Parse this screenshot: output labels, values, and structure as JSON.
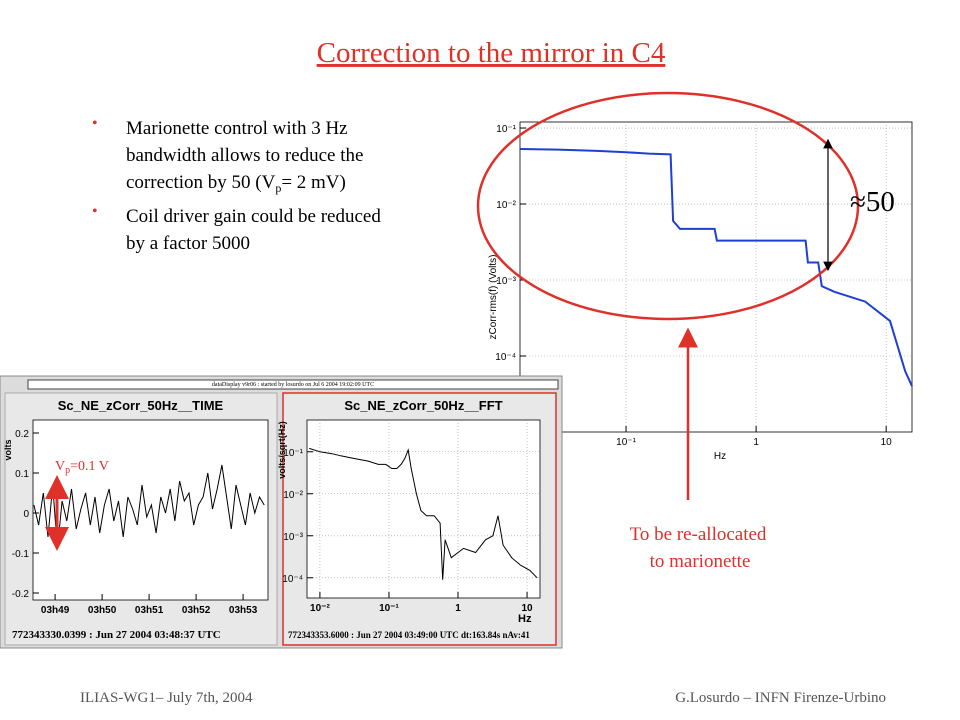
{
  "title": "Correction to the mirror in C4",
  "bullets": [
    [
      "Marionette control with 3 Hz",
      "bandwidth allows to reduce the",
      "correction by 50 (V",
      "p",
      "= 2 mV)"
    ],
    [
      "Coil driver gain could be reduced",
      "by a factor 5000"
    ]
  ],
  "ratio_label": "≈50",
  "reallocate_note": [
    "To be re-allocated",
    "to marionette"
  ],
  "inset_header": "dataDisplay v9r06 : started by losurdo on Jul 6 2004 19:02:09 UTC",
  "footer": {
    "left": "ILIAS-WG1– July 7th, 2004",
    "right": "G.Losurdo – INFN Firenze-Urbino"
  },
  "chart_data": [
    {
      "type": "line",
      "log_x": true,
      "log_y": true,
      "grid": true,
      "y_label": "zCorr-rms(f)  (Volts)",
      "x_label": "Hz",
      "xlim": [
        0.0153,
        15.8
      ],
      "ylim": [
        1e-05,
        0.12
      ],
      "xticks": [
        {
          "value": 0.1,
          "label": "10⁻¹"
        },
        1,
        10
      ],
      "yticks": [
        {
          "value": 0.1,
          "label": "10⁻¹"
        },
        {
          "value": 0.01,
          "label": "10⁻²"
        },
        {
          "value": 0.001,
          "label": "10⁻³"
        },
        {
          "value": 0.0001,
          "label": "10⁻⁴"
        }
      ],
      "x": [
        0.0153,
        0.03,
        0.06,
        0.1,
        0.15,
        0.22,
        0.23,
        0.26,
        0.35,
        0.48,
        0.5,
        1,
        2.4,
        2.5,
        3.0,
        3.2,
        4,
        6.9,
        10.7,
        14,
        15.8
      ],
      "series": [
        {
          "color": "#1e3fd4",
          "values": [
            0.053,
            0.052,
            0.05,
            0.048,
            0.046,
            0.045,
            0.006,
            0.0047,
            0.0047,
            0.0047,
            0.0033,
            0.0033,
            0.0033,
            0.0017,
            0.0017,
            0.00083,
            0.0007,
            0.00052,
            0.00029,
            6.3e-05,
            4e-05
          ]
        }
      ]
    },
    {
      "type": "line",
      "log_x": false,
      "log_y": false,
      "grid": false,
      "title": "Sc_NE_zCorr_50Hz__TIME",
      "y_label": "volts",
      "caption": "772343330.0399 : Jun 27 2004 03:48:37 UTC",
      "annotation": [
        "V",
        "p",
        "=0.1 V"
      ],
      "xlim": [
        48.53,
        53.53
      ],
      "ylim": [
        -0.2175,
        0.2325
      ],
      "xticks": [
        {
          "value": 49,
          "label": "03h49"
        },
        {
          "value": 50,
          "label": "03h50"
        },
        {
          "value": 51,
          "label": "03h51"
        },
        {
          "value": 52,
          "label": "03h52"
        },
        {
          "value": 53,
          "label": "03h53"
        }
      ],
      "yticks": [
        0.2,
        0.1,
        0,
        -0.1,
        -0.2
      ],
      "x": [
        48.55,
        48.65,
        48.75,
        48.85,
        48.95,
        49.05,
        49.15,
        49.25,
        49.35,
        49.45,
        49.55,
        49.65,
        49.75,
        49.85,
        49.95,
        50.05,
        50.15,
        50.25,
        50.35,
        50.45,
        50.55,
        50.65,
        50.75,
        50.85,
        50.95,
        51.05,
        51.15,
        51.25,
        51.35,
        51.45,
        51.55,
        51.65,
        51.75,
        51.85,
        51.95,
        52.05,
        52.15,
        52.25,
        52.35,
        52.45,
        52.55,
        52.65,
        52.75,
        52.85,
        52.95,
        53.05,
        53.15,
        53.25,
        53.35,
        53.45
      ],
      "series": [
        {
          "color": "#000000",
          "values": [
            0.02,
            -0.03,
            0.05,
            -0.06,
            0.07,
            -0.09,
            0.03,
            -0.02,
            0.06,
            -0.04,
            0.01,
            0.05,
            -0.03,
            0.04,
            -0.05,
            0.02,
            0.06,
            -0.02,
            0.03,
            -0.06,
            0.04,
            0.01,
            -0.03,
            0.07,
            -0.01,
            0.02,
            -0.05,
            0.04,
            0.0,
            0.06,
            -0.02,
            0.08,
            0.03,
            0.05,
            -0.03,
            0.02,
            0.04,
            0.1,
            0.01,
            0.06,
            0.12,
            0.04,
            -0.04,
            0.07,
            0.02,
            -0.03,
            0.05,
            0.0,
            0.04,
            0.02
          ]
        }
      ]
    },
    {
      "type": "line",
      "log_x": true,
      "log_y": true,
      "grid": true,
      "title": "Sc_NE_zCorr_50Hz__FFT",
      "y_label": "volts/sqrt(Hz)",
      "x_label": "Hz",
      "caption": "772343353.6000 : Jun 27 2004 03:49:00 UTC dt:163.84s nAv:41",
      "xlim": [
        0.0065,
        15.4
      ],
      "ylim": [
        3.3e-05,
        0.57
      ],
      "xticks": [
        {
          "value": 0.01,
          "label": "10⁻²"
        },
        {
          "value": 0.1,
          "label": "10⁻¹"
        },
        1,
        10
      ],
      "yticks": [
        {
          "value": 0.1,
          "label": "10⁻¹"
        },
        {
          "value": 0.01,
          "label": "10⁻²"
        },
        {
          "value": 0.001,
          "label": "10⁻³"
        },
        {
          "value": 0.0001,
          "label": "10⁻⁴"
        }
      ],
      "x": [
        0.007,
        0.01,
        0.015,
        0.02,
        0.03,
        0.05,
        0.07,
        0.09,
        0.11,
        0.13,
        0.15,
        0.17,
        0.19,
        0.21,
        0.25,
        0.29,
        0.35,
        0.45,
        0.55,
        0.6,
        0.65,
        0.8,
        1.2,
        1.8,
        2.5,
        3.2,
        3.8,
        4.5,
        6,
        8,
        11,
        14
      ],
      "series": [
        {
          "color": "#000000",
          "values": [
            0.12,
            0.1,
            0.09,
            0.08,
            0.07,
            0.06,
            0.05,
            0.05,
            0.04,
            0.04,
            0.05,
            0.07,
            0.11,
            0.04,
            0.01,
            0.004,
            0.003,
            0.003,
            0.002,
            9e-05,
            0.0008,
            0.0003,
            0.0005,
            0.0004,
            0.0008,
            0.001,
            0.003,
            0.0006,
            0.0003,
            0.0002,
            0.00015,
            0.0001
          ]
        }
      ]
    }
  ]
}
